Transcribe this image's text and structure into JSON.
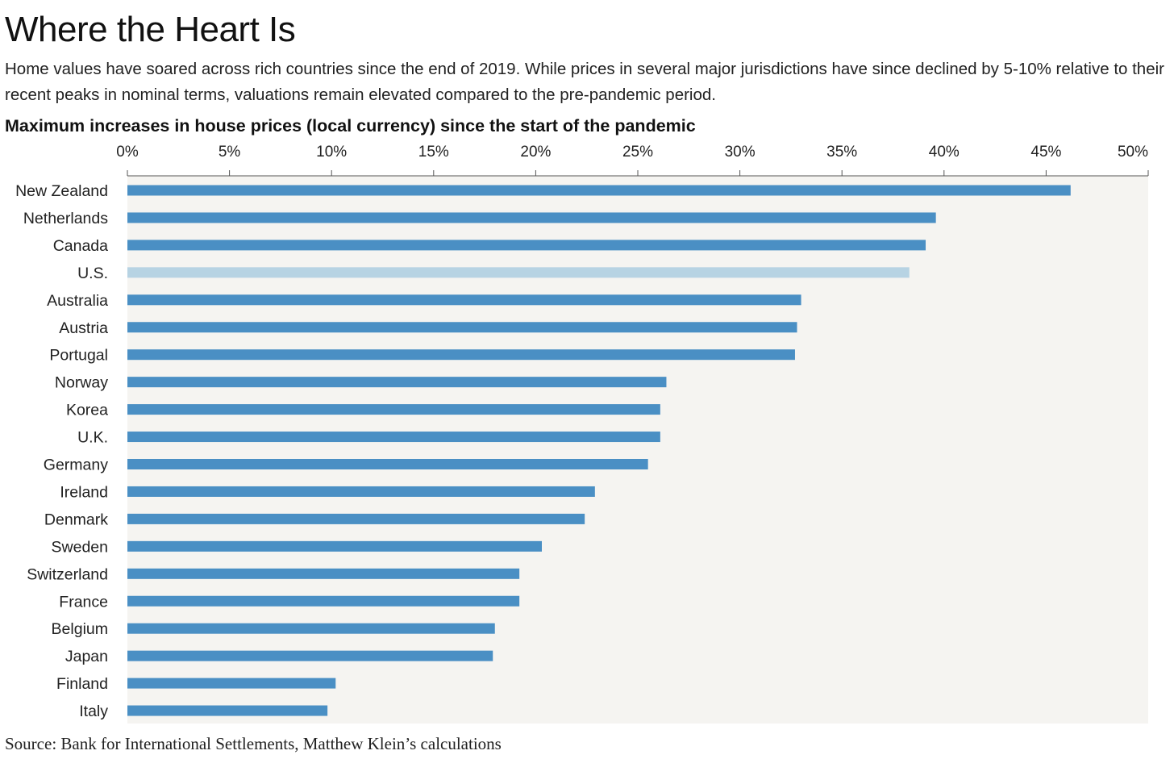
{
  "title": "Where the Heart Is",
  "subtitle": "Home values have soared across rich countries since the end of 2019. While prices in several major jurisdictions have since declined by 5-10% relative to their recent peaks in nominal terms, valuations remain elevated compared to the pre-pandemic period.",
  "source": "Source: Bank for International Settlements, Matthew Klein’s calculations",
  "colors": {
    "bar": "#4a8fc4",
    "highlight": "#b7d3e3",
    "plot_background": "#f5f4f1",
    "text": "#222222"
  },
  "chart_data": {
    "type": "bar",
    "orientation": "horizontal",
    "title": "Maximum increases in house prices (local currency) since the start of the pandemic",
    "xlabel": "",
    "ylabel": "",
    "xlim": [
      0,
      50
    ],
    "x_ticks": [
      0,
      5,
      10,
      15,
      20,
      25,
      30,
      35,
      40,
      45,
      50
    ],
    "x_tick_labels": [
      "0%",
      "5%",
      "10%",
      "15%",
      "20%",
      "25%",
      "30%",
      "35%",
      "40%",
      "45%",
      "50%"
    ],
    "x_axis_position": "top",
    "grid": false,
    "categories": [
      "New Zealand",
      "Netherlands",
      "Canada",
      "U.S.",
      "Australia",
      "Austria",
      "Portugal",
      "Norway",
      "Korea",
      "U.K.",
      "Germany",
      "Ireland",
      "Denmark",
      "Sweden",
      "Switzerland",
      "France",
      "Belgium",
      "Japan",
      "Finland",
      "Italy"
    ],
    "values": [
      46.2,
      39.6,
      39.1,
      38.3,
      33.0,
      32.8,
      32.7,
      26.4,
      26.1,
      26.1,
      25.5,
      22.9,
      22.4,
      20.3,
      19.2,
      19.2,
      18.0,
      17.9,
      10.2,
      9.8
    ],
    "highlighted_category": "U.S."
  }
}
